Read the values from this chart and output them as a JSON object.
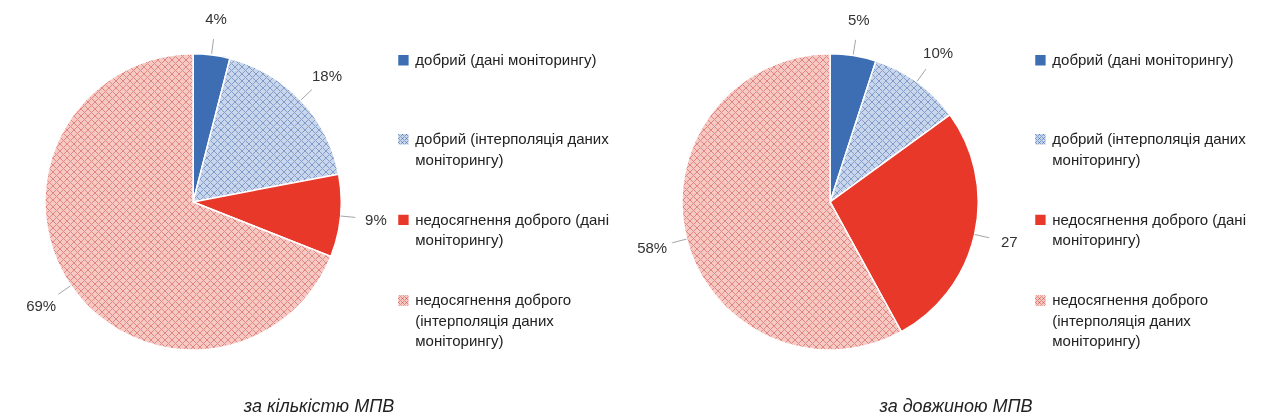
{
  "chart_data": [
    {
      "type": "pie",
      "title": "за кількістю МПВ",
      "categories": [
        "добрий (дані моніторингу)",
        "добрий (інтерполяція даних моніторингу)",
        "недосягнення доброго (дані моніторингу)",
        "недосягнення доброго (інтерполяція даних моніторингу)"
      ],
      "values": [
        4,
        18,
        9,
        69
      ],
      "value_labels": [
        "4%",
        "18%",
        "9%",
        "69%"
      ],
      "colors": [
        "#3d6eb4",
        "#c9d6ec",
        "#e8382a",
        "#f7c9c5"
      ],
      "legend": "right"
    },
    {
      "type": "pie",
      "title": "за довжиною МПВ",
      "categories": [
        "добрий (дані моніторингу)",
        "добрий (інтерполяція даних моніторингу)",
        "недосягнення доброго (дані моніторингу)",
        "недосягнення доброго (інтерполяція даних моніторингу)"
      ],
      "values": [
        5,
        10,
        27,
        58
      ],
      "value_labels": [
        "5%",
        "10%",
        "27",
        "58%"
      ],
      "colors": [
        "#3d6eb4",
        "#c9d6ec",
        "#e8382a",
        "#f7c9c5"
      ],
      "legend": "right"
    }
  ]
}
